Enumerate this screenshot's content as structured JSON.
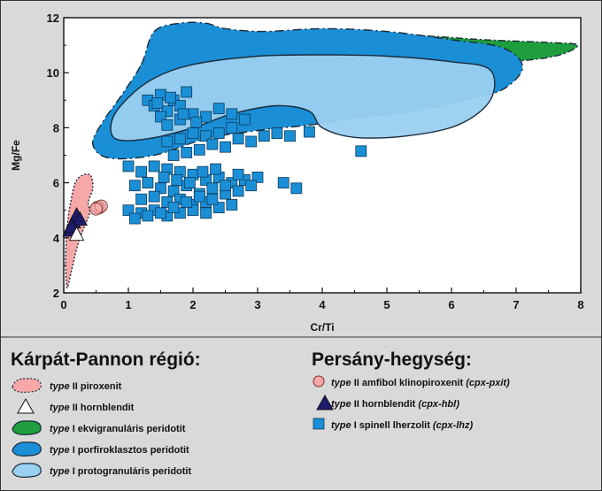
{
  "chart_data": {
    "type": "scatter",
    "xlabel": "Cr/Ti",
    "ylabel": "Mg/Fe",
    "xlim": [
      0,
      8
    ],
    "ylim": [
      2,
      12
    ],
    "x_ticks": [
      "0",
      "1",
      "2",
      "3",
      "4",
      "5",
      "6",
      "7",
      "8"
    ],
    "y_ticks": [
      "2",
      "4",
      "6",
      "8",
      "10",
      "12"
    ],
    "fields": [
      {
        "id": "piroxenit",
        "color": "#f6a8a8",
        "points": [
          [
            0.05,
            4.3
          ],
          [
            0.1,
            5.2
          ],
          [
            0.2,
            6.1
          ],
          [
            0.4,
            6.3
          ],
          [
            0.45,
            5.8
          ],
          [
            0.38,
            5.3
          ],
          [
            0.4,
            4.9
          ],
          [
            0.3,
            4.3
          ],
          [
            0.2,
            3.6
          ],
          [
            0.1,
            2.6
          ],
          [
            0.05,
            2.2
          ],
          [
            0.03,
            3.2
          ]
        ]
      },
      {
        "id": "ekvigranularis",
        "color": "#1e9e3e",
        "points": [
          [
            2.6,
            10.7
          ],
          [
            3.5,
            11.3
          ],
          [
            4.5,
            11.4
          ],
          [
            5.5,
            11.35
          ],
          [
            6.5,
            11.2
          ],
          [
            7.5,
            11.1
          ],
          [
            7.95,
            11.0
          ],
          [
            7.6,
            10.6
          ],
          [
            6.8,
            10.4
          ],
          [
            6.0,
            10.5
          ],
          [
            5.0,
            10.6
          ],
          [
            4.0,
            10.6
          ],
          [
            3.0,
            10.45
          ],
          [
            2.6,
            10.5
          ]
        ]
      },
      {
        "id": "ekvigranularis-2",
        "color": "#1e9e3e",
        "points": [
          [
            2.85,
            8.6
          ],
          [
            3.2,
            8.9
          ],
          [
            3.6,
            8.95
          ],
          [
            4.0,
            8.7
          ],
          [
            3.9,
            8.2
          ],
          [
            3.5,
            8.1
          ],
          [
            3.05,
            8.25
          ]
        ]
      },
      {
        "id": "porfiroklasztos",
        "color": "#1a8fd6",
        "points": [
          [
            1.2,
            10.3
          ],
          [
            1.4,
            11.5
          ],
          [
            1.8,
            11.8
          ],
          [
            2.2,
            11.8
          ],
          [
            2.5,
            11.6
          ],
          [
            3.1,
            11.5
          ],
          [
            4.0,
            11.6
          ],
          [
            5.0,
            11.5
          ],
          [
            6.0,
            11.2
          ],
          [
            6.8,
            10.9
          ],
          [
            7.1,
            10.2
          ],
          [
            6.8,
            9.4
          ],
          [
            6.2,
            9.0
          ],
          [
            5.4,
            8.6
          ],
          [
            4.5,
            8.35
          ],
          [
            3.8,
            8.1
          ],
          [
            3.0,
            7.9
          ],
          [
            2.2,
            7.6
          ],
          [
            1.4,
            7.0
          ],
          [
            0.7,
            6.9
          ],
          [
            0.45,
            7.4
          ],
          [
            0.6,
            8.2
          ],
          [
            0.9,
            9.2
          ]
        ]
      },
      {
        "id": "protogranularis",
        "color": "#9ad0f0",
        "points": [
          [
            1.0,
            9.1
          ],
          [
            1.4,
            9.8
          ],
          [
            2.0,
            10.3
          ],
          [
            3.0,
            10.6
          ],
          [
            4.0,
            10.65
          ],
          [
            5.0,
            10.6
          ],
          [
            6.0,
            10.4
          ],
          [
            6.6,
            10.1
          ],
          [
            6.6,
            9.0
          ],
          [
            6.1,
            8.1
          ],
          [
            5.3,
            7.7
          ],
          [
            4.5,
            7.65
          ],
          [
            4.0,
            8.0
          ],
          [
            3.8,
            8.6
          ],
          [
            3.3,
            8.8
          ],
          [
            2.6,
            8.5
          ],
          [
            2.0,
            8.0
          ],
          [
            1.3,
            7.6
          ],
          [
            0.8,
            7.6
          ],
          [
            0.75,
            8.3
          ]
        ]
      }
    ],
    "series": [
      {
        "id": "cpx-pxit",
        "marker": "circle",
        "color": "#f6a8a8",
        "points": [
          [
            0.55,
            5.1
          ],
          [
            0.52,
            5.1
          ],
          [
            0.58,
            5.15
          ],
          [
            0.5,
            5.05
          ]
        ]
      },
      {
        "id": "cpx-hbl",
        "marker": "triangle",
        "color": "#1f1b6e",
        "points": [
          [
            0.1,
            4.25
          ],
          [
            0.15,
            4.55
          ],
          [
            0.2,
            4.8
          ],
          [
            0.25,
            4.65
          ],
          [
            0.12,
            4.4
          ]
        ]
      },
      {
        "id": "hornblendit-karpat",
        "marker": "triangle",
        "color": "#ffffff",
        "points": [
          [
            0.2,
            4.1
          ]
        ]
      },
      {
        "id": "cpx-lhz",
        "marker": "square",
        "color": "#1a8fd6",
        "points": [
          [
            1.3,
            9.0
          ],
          [
            1.4,
            8.8
          ],
          [
            1.5,
            9.2
          ],
          [
            1.6,
            8.6
          ],
          [
            1.7,
            9.0
          ],
          [
            1.8,
            8.8
          ],
          [
            1.9,
            9.3
          ],
          [
            1.5,
            8.4
          ],
          [
            1.6,
            8.1
          ],
          [
            1.8,
            8.3
          ],
          [
            2.0,
            8.5
          ],
          [
            2.2,
            8.4
          ],
          [
            2.4,
            8.7
          ],
          [
            2.6,
            8.5
          ],
          [
            2.8,
            8.3
          ],
          [
            2.6,
            8.0
          ],
          [
            2.4,
            7.8
          ],
          [
            2.2,
            7.7
          ],
          [
            2.0,
            7.8
          ],
          [
            1.8,
            7.6
          ],
          [
            1.6,
            7.5
          ],
          [
            1.7,
            7.0
          ],
          [
            1.9,
            7.1
          ],
          [
            2.1,
            7.2
          ],
          [
            2.3,
            7.4
          ],
          [
            2.5,
            7.3
          ],
          [
            2.7,
            7.6
          ],
          [
            2.9,
            7.5
          ],
          [
            3.1,
            7.7
          ],
          [
            3.3,
            7.8
          ],
          [
            3.5,
            7.7
          ],
          [
            3.8,
            7.85
          ],
          [
            4.6,
            7.15
          ],
          [
            1.0,
            6.6
          ],
          [
            1.2,
            6.4
          ],
          [
            1.4,
            6.6
          ],
          [
            1.6,
            6.5
          ],
          [
            1.8,
            6.4
          ],
          [
            2.0,
            6.3
          ],
          [
            2.2,
            6.1
          ],
          [
            2.4,
            6.2
          ],
          [
            2.6,
            6.0
          ],
          [
            2.8,
            6.1
          ],
          [
            3.0,
            6.2
          ],
          [
            1.1,
            5.9
          ],
          [
            1.3,
            6.0
          ],
          [
            1.5,
            5.8
          ],
          [
            1.7,
            5.7
          ],
          [
            1.9,
            5.9
          ],
          [
            2.1,
            5.6
          ],
          [
            2.3,
            5.8
          ],
          [
            2.5,
            5.6
          ],
          [
            2.7,
            5.7
          ],
          [
            2.9,
            5.9
          ],
          [
            1.2,
            5.4
          ],
          [
            1.4,
            5.5
          ],
          [
            1.6,
            5.3
          ],
          [
            1.8,
            5.4
          ],
          [
            2.0,
            5.2
          ],
          [
            2.2,
            5.3
          ],
          [
            2.4,
            5.1
          ],
          [
            2.6,
            5.2
          ],
          [
            1.0,
            5.0
          ],
          [
            1.2,
            4.9
          ],
          [
            1.4,
            5.0
          ],
          [
            1.6,
            4.8
          ],
          [
            1.8,
            4.9
          ],
          [
            2.0,
            5.0
          ],
          [
            2.2,
            4.9
          ],
          [
            1.1,
            4.7
          ],
          [
            1.3,
            4.8
          ],
          [
            1.5,
            4.9
          ],
          [
            1.7,
            5.1
          ],
          [
            1.9,
            5.3
          ],
          [
            2.1,
            5.5
          ],
          [
            2.3,
            5.4
          ],
          [
            2.5,
            5.9
          ],
          [
            2.7,
            6.3
          ],
          [
            3.4,
            6.0
          ],
          [
            3.6,
            5.8
          ],
          [
            1.55,
            6.2
          ],
          [
            1.75,
            6.1
          ],
          [
            1.95,
            6.0
          ],
          [
            2.15,
            6.4
          ],
          [
            2.35,
            6.5
          ],
          [
            1.45,
            8.9
          ],
          [
            1.65,
            9.1
          ],
          [
            1.85,
            8.5
          ],
          [
            2.05,
            8.2
          ]
        ]
      }
    ]
  },
  "legend": {
    "left_title": "Kárpát-Pannon régió:",
    "right_title": "Persány-hegység:",
    "left_items": [
      {
        "prefix": "type",
        "roman": "II",
        "text": "piroxenit",
        "color": "#f6a8a8",
        "icon": "field-blob-icon"
      },
      {
        "prefix": "type",
        "roman": "II",
        "text": "hornblendit",
        "color": "#ffffff",
        "icon": "triangle-icon"
      },
      {
        "prefix": "type",
        "roman": "I",
        "text": "ekvigranuláris peridotit",
        "color": "#1e9e3e",
        "icon": "field-blob-icon"
      },
      {
        "prefix": "type",
        "roman": "I",
        "text": "porfiroklasztos peridotit",
        "color": "#1a8fd6",
        "icon": "field-blob-icon"
      },
      {
        "prefix": "type",
        "roman": "I",
        "text": "protogranuláris peridotit",
        "color": "#9ad0f0",
        "icon": "field-blob-icon"
      }
    ],
    "right_items": [
      {
        "prefix": "type",
        "roman": "II",
        "text": "amfibol klinopiroxenit",
        "code": "(cpx-pxit)",
        "color": "#f6a8a8",
        "icon": "circle-icon"
      },
      {
        "prefix": "type",
        "roman": "II",
        "text": "hornblendit",
        "code": "(cpx-hbl)",
        "color": "#1f1b6e",
        "icon": "triangle-icon"
      },
      {
        "prefix": "type",
        "roman": "I",
        "text": "spinell lherzolit",
        "code": "(cpx-lhz)",
        "color": "#1a8fd6",
        "icon": "square-icon"
      }
    ]
  }
}
